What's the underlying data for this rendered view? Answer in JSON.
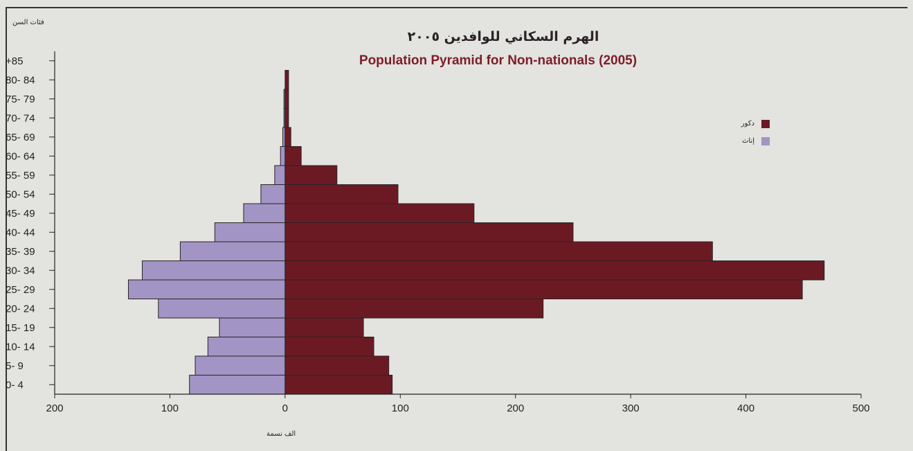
{
  "chart_data": {
    "type": "bar",
    "orientation": "horizontal",
    "title": "الهرم السكاني للوافدين ٢٠٠٥",
    "subtitle": "Population Pyramid for Non-nationals (2005)",
    "ylabel": "فئات السن",
    "xlabel": "الف نسمة",
    "xlim": [
      -200,
      500
    ],
    "x_ticks": [
      {
        "value": -200,
        "label": "200"
      },
      {
        "value": -100,
        "label": "100"
      },
      {
        "value": 0,
        "label": "0"
      },
      {
        "value": 100,
        "label": "100"
      },
      {
        "value": 200,
        "label": "200"
      },
      {
        "value": 300,
        "label": "300"
      },
      {
        "value": 400,
        "label": "400"
      },
      {
        "value": 500,
        "label": "500"
      }
    ],
    "categories": [
      "0- 4",
      "5- 9",
      "10- 14",
      "15- 19",
      "20- 24",
      "25- 29",
      "30- 34",
      "35- 39",
      "40- 44",
      "45- 49",
      "50- 54",
      "55- 59",
      "60- 64",
      "65- 69",
      "70- 74",
      "75- 79",
      "80- 84",
      "+85"
    ],
    "series": [
      {
        "name": "دكور",
        "color": "#6b1a23",
        "values": [
          93,
          90,
          77,
          68,
          224,
          449,
          468,
          371,
          250,
          164,
          98,
          45,
          14,
          5,
          3,
          3,
          3,
          0
        ]
      },
      {
        "name": "إناث",
        "color": "#a294c4",
        "values": [
          83,
          78,
          67,
          57,
          110,
          136,
          124,
          91,
          61,
          36,
          21,
          9,
          4,
          2,
          1,
          1,
          0,
          0
        ]
      }
    ],
    "legend_position": "right",
    "grid": false
  }
}
